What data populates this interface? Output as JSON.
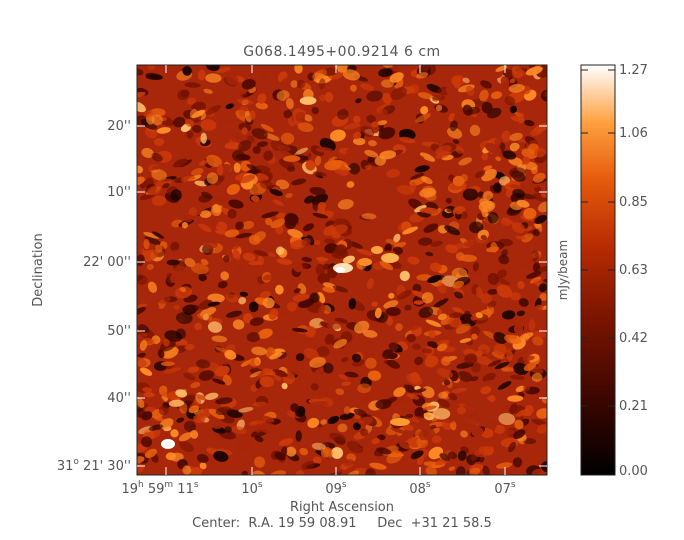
{
  "title": "G068.1495+00.9214 6 cm",
  "x_axis": {
    "label": "Right Ascension",
    "ticks": [
      {
        "pre": "19",
        "sup1": "h",
        "mid": " 59",
        "sup2": "m",
        "post": " 11",
        "sup3": "s"
      },
      {
        "pre": "",
        "sup1": "",
        "mid": "",
        "sup2": "",
        "post": "10",
        "sup3": "s"
      },
      {
        "pre": "",
        "sup1": "",
        "mid": "",
        "sup2": "",
        "post": "09",
        "sup3": "s"
      },
      {
        "pre": "",
        "sup1": "",
        "mid": "",
        "sup2": "",
        "post": "08",
        "sup3": "s"
      },
      {
        "pre": "",
        "sup1": "",
        "mid": "",
        "sup2": "",
        "post": "07",
        "sup3": "s"
      }
    ]
  },
  "y_axis": {
    "label": "Declination",
    "ticks": [
      "20''",
      "10''",
      "22' 00''",
      "50''",
      "40''"
    ],
    "bottom_tick": {
      "pre": "31",
      "sup": "o",
      "post": " 21' 30''"
    }
  },
  "colorbar": {
    "label": "mJy/beam",
    "ticks": [
      "1.27",
      "1.06",
      "0.85",
      "0.63",
      "0.42",
      "0.21",
      "0.00"
    ],
    "min": 0.0,
    "max": 1.27,
    "colormap": [
      "#000000",
      "#4a0800",
      "#8a1a00",
      "#c83c08",
      "#f07a18",
      "#ffb25a",
      "#ffffff"
    ]
  },
  "center_label": "Center:  R.A. 19 59 08.91     Dec  +31 21 58.5",
  "image_stats": {
    "background_level": 0.63,
    "peak_level": 1.27,
    "noise": 0.18
  },
  "beam": {
    "shape": "ellipse",
    "color": "#ffffff"
  }
}
